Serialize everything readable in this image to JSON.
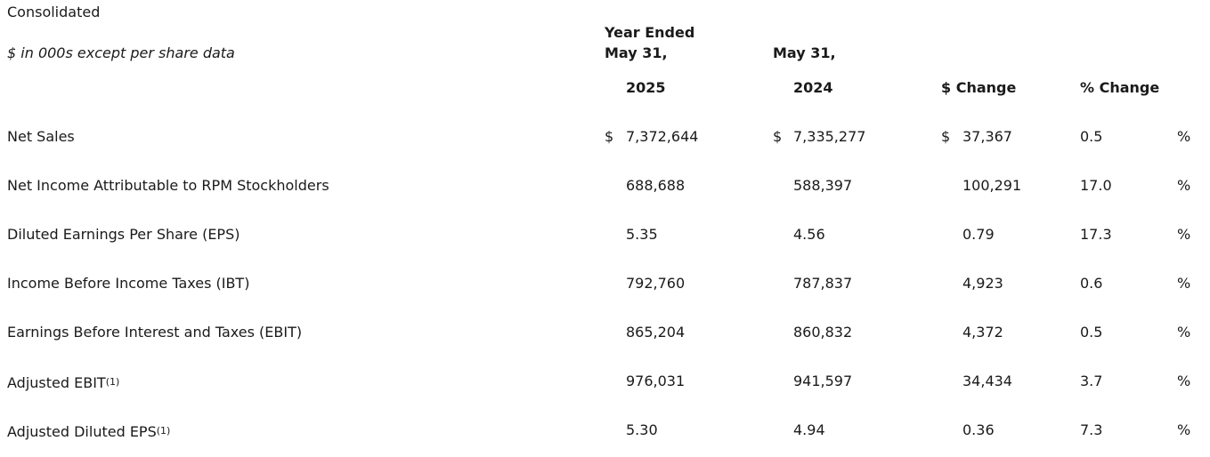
{
  "table": {
    "title": "Consolidated",
    "units_note": "$ in 000s except per share data",
    "header": {
      "year_ended": "Year Ended",
      "col2025_date": "May 31,",
      "col2024_date": "May 31,",
      "col2025_year": "2025",
      "col2024_year": "2024",
      "dollar_change": "$ Change",
      "pct_change": "% Change"
    },
    "rows": [
      {
        "label": "Net Sales",
        "sup": "",
        "cur_2025": "$",
        "v2025": "7,372,644",
        "cur_2024": "$",
        "v2024": "7,335,277",
        "cur_change": "$",
        "change": "37,367",
        "pct": "0.5",
        "pct_sign": "%"
      },
      {
        "label": "Net Income Attributable to RPM Stockholders",
        "sup": "",
        "cur_2025": "",
        "v2025": "688,688",
        "cur_2024": "",
        "v2024": "588,397",
        "cur_change": "",
        "change": "100,291",
        "pct": "17.0",
        "pct_sign": "%"
      },
      {
        "label": "Diluted Earnings Per Share (EPS)",
        "sup": "",
        "cur_2025": "",
        "v2025": "5.35",
        "cur_2024": "",
        "v2024": "4.56",
        "cur_change": "",
        "change": "0.79",
        "pct": "17.3",
        "pct_sign": "%"
      },
      {
        "label": "Income Before Income Taxes (IBT)",
        "sup": "",
        "cur_2025": "",
        "v2025": "792,760",
        "cur_2024": "",
        "v2024": "787,837",
        "cur_change": "",
        "change": "4,923",
        "pct": "0.6",
        "pct_sign": "%"
      },
      {
        "label": "Earnings Before Interest and Taxes (EBIT)",
        "sup": "",
        "cur_2025": "",
        "v2025": "865,204",
        "cur_2024": "",
        "v2024": "860,832",
        "cur_change": "",
        "change": "4,372",
        "pct": "0.5",
        "pct_sign": "%"
      },
      {
        "label": "Adjusted EBIT",
        "sup": "(1)",
        "cur_2025": "",
        "v2025": "976,031",
        "cur_2024": "",
        "v2024": "941,597",
        "cur_change": "",
        "change": "34,434",
        "pct": "3.7",
        "pct_sign": "%"
      },
      {
        "label": "Adjusted Diluted EPS",
        "sup": "(1)",
        "cur_2025": "",
        "v2025": "5.30",
        "cur_2024": "",
        "v2024": "4.94",
        "cur_change": "",
        "change": "0.36",
        "pct": "7.3",
        "pct_sign": "%"
      }
    ]
  }
}
